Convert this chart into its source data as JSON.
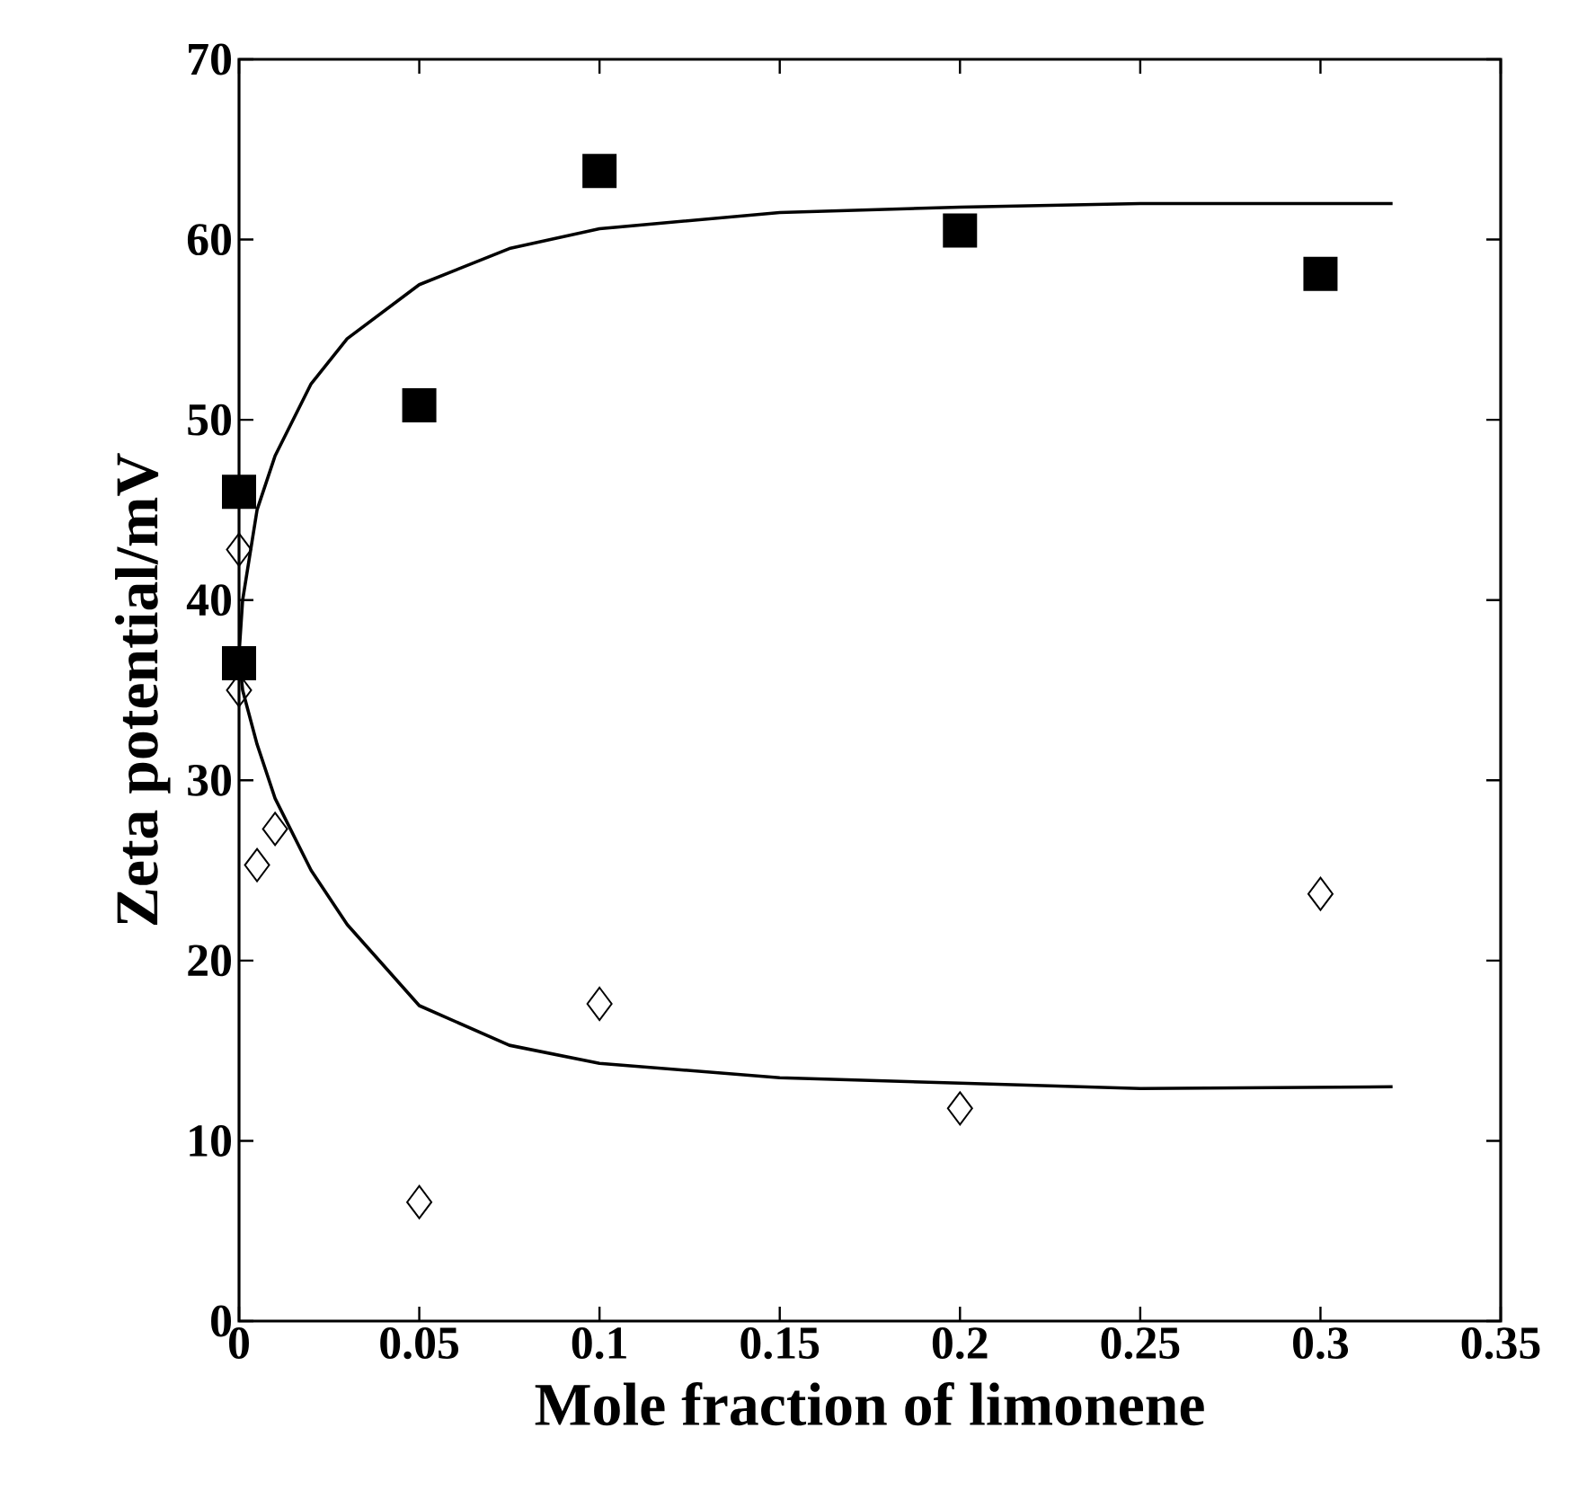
{
  "chart_data": {
    "type": "scatter",
    "xlabel": "Mole fraction of limonene",
    "ylabel": "Zeta potential/mV",
    "xlim": [
      0,
      0.35
    ],
    "ylim": [
      0,
      70
    ],
    "xticks": [
      0,
      0.05,
      0.1,
      0.15,
      0.2,
      0.25,
      0.3,
      0.35
    ],
    "yticks": [
      0,
      10,
      20,
      30,
      40,
      50,
      60,
      70
    ],
    "series": [
      {
        "marker": "square",
        "color": "#000000",
        "x": [
          0,
          0,
          0.05,
          0.1,
          0.2,
          0.3
        ],
        "values": [
          46,
          36.5,
          50.8,
          63.8,
          60.5,
          58.1
        ]
      },
      {
        "marker": "diamond",
        "color": "#000000",
        "x": [
          0,
          0,
          0.005,
          0.01,
          0.05,
          0.1,
          0.2,
          0.3
        ],
        "values": [
          42.8,
          35,
          25.3,
          27.3,
          6.6,
          17.6,
          11.8,
          23.7
        ]
      },
      {
        "type": "line",
        "marker": "none",
        "color": "#000000",
        "x": [
          0,
          0.001,
          0.005,
          0.01,
          0.02,
          0.03,
          0.05,
          0.075,
          0.1,
          0.15,
          0.2,
          0.25,
          0.32
        ],
        "values": [
          37,
          40,
          45,
          48,
          52,
          54.5,
          57.5,
          59.5,
          60.6,
          61.5,
          61.8,
          62,
          62
        ]
      },
      {
        "type": "line",
        "marker": "none",
        "color": "#000000",
        "x": [
          0,
          0.001,
          0.005,
          0.01,
          0.02,
          0.03,
          0.05,
          0.075,
          0.1,
          0.15,
          0.2,
          0.25,
          0.32
        ],
        "values": [
          37,
          35,
          32,
          29,
          25,
          22,
          17.5,
          15.3,
          14.3,
          13.5,
          13.2,
          12.9,
          13
        ]
      }
    ]
  }
}
